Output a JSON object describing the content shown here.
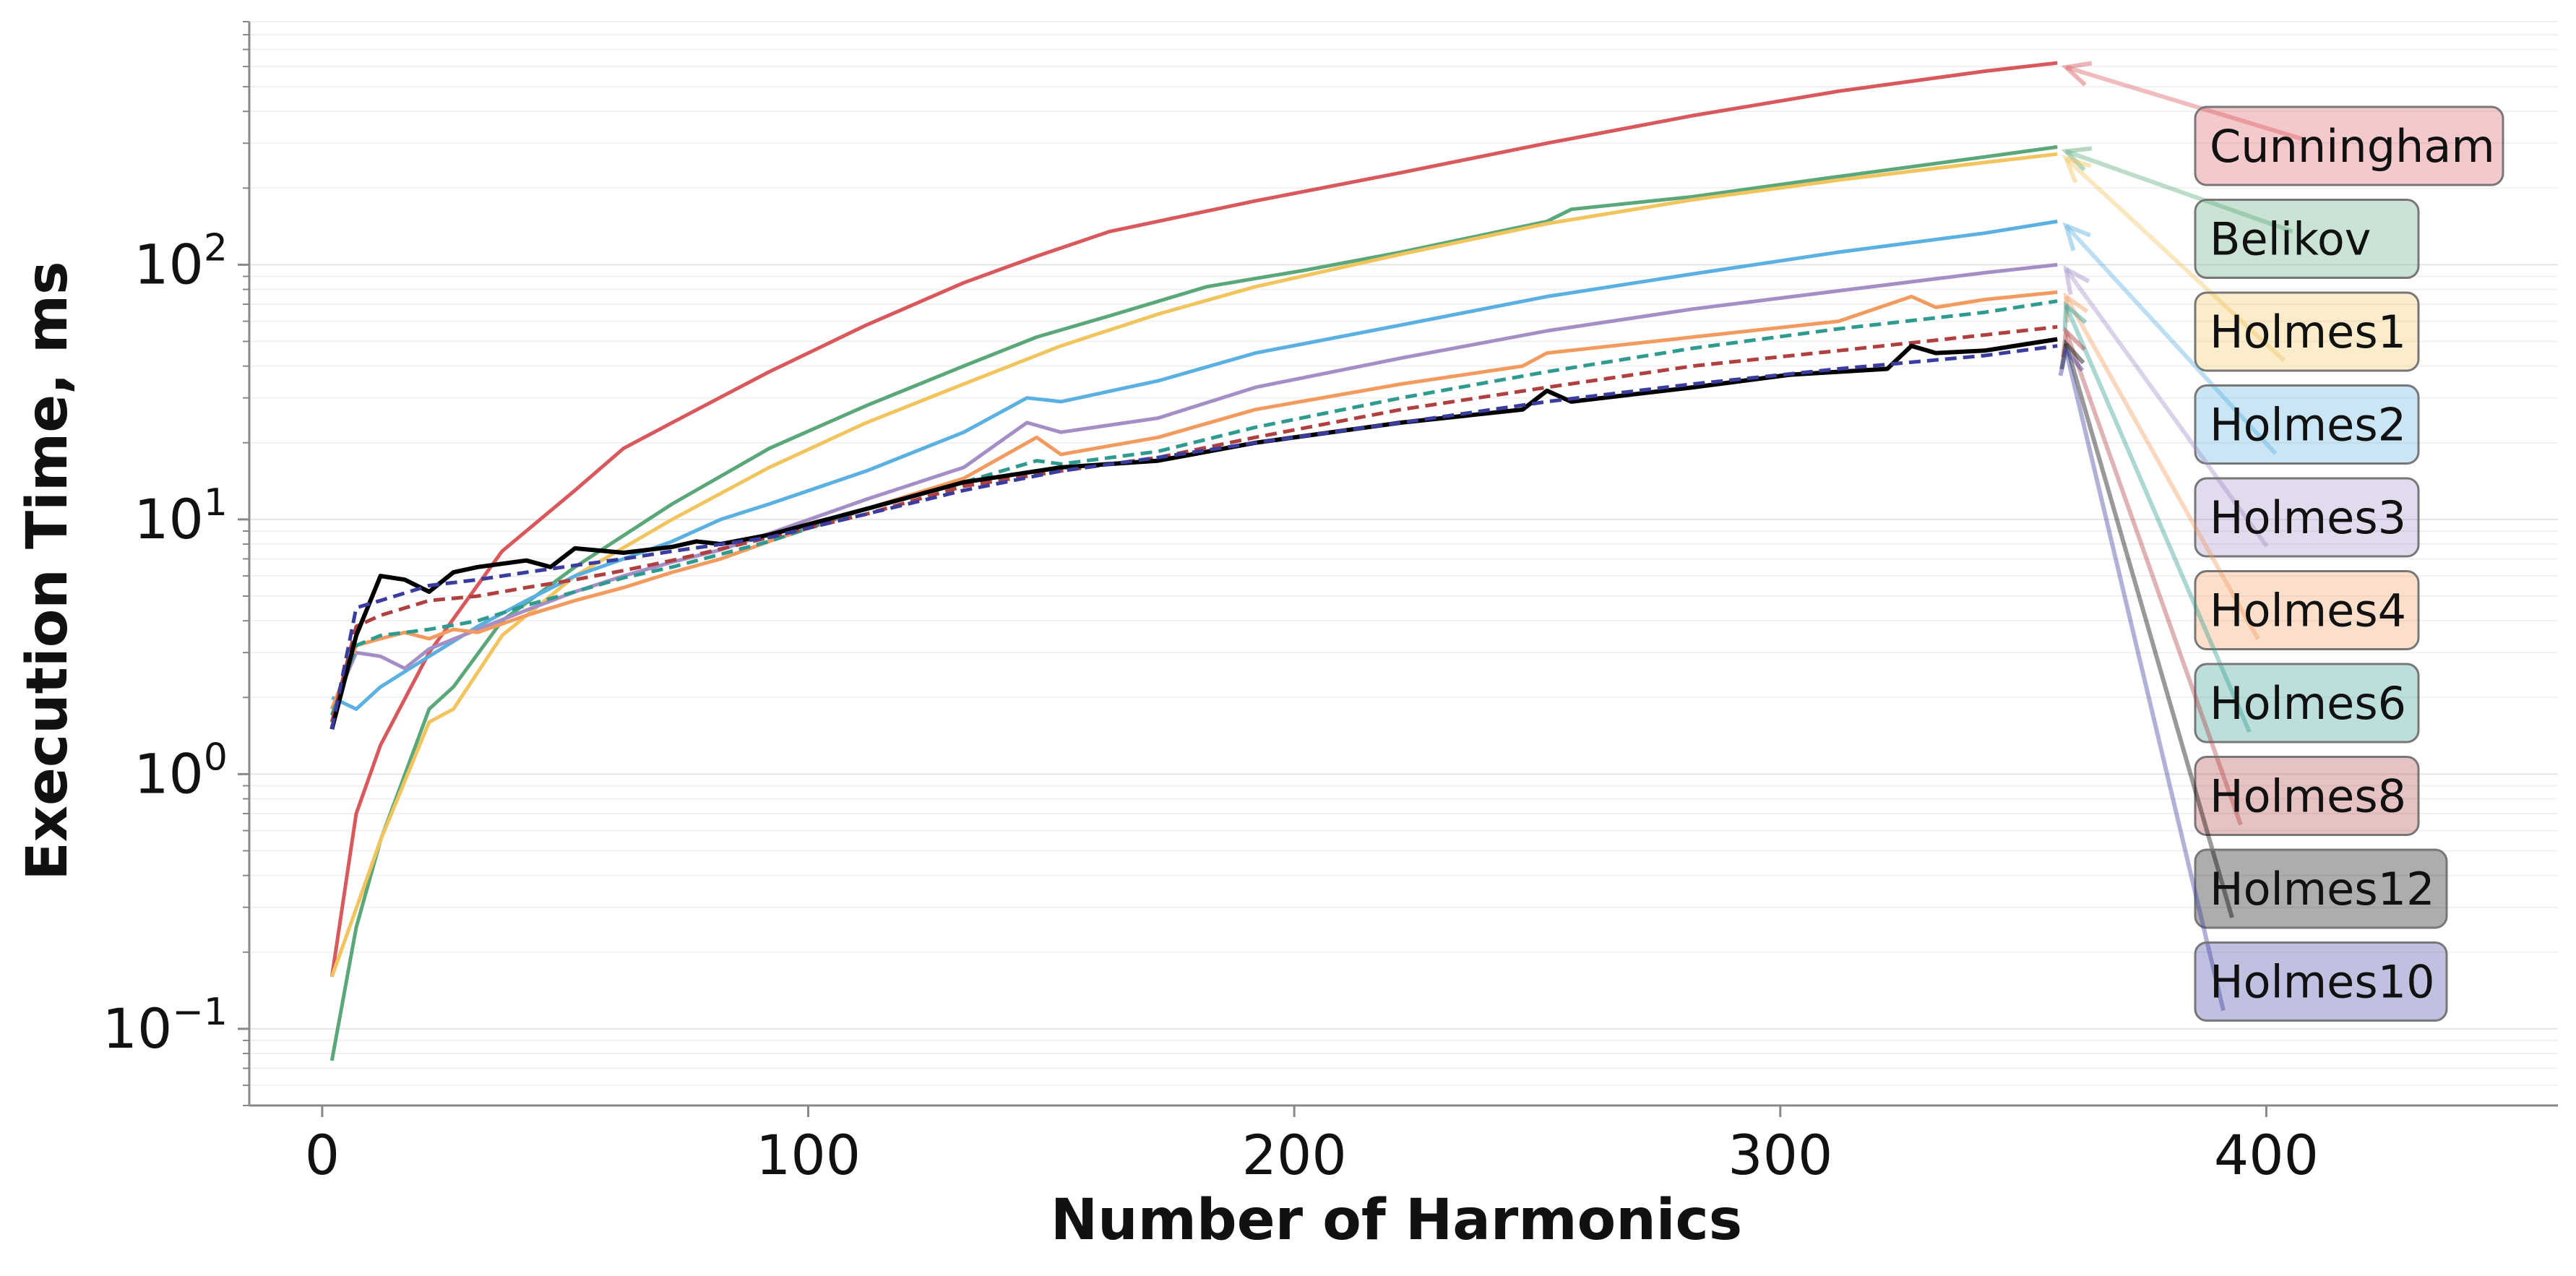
{
  "chart_data": {
    "type": "line",
    "title": "",
    "xlabel": "Number of Harmonics",
    "ylabel": "Execution Time, ms",
    "yscale": "log",
    "xlim": [
      -15,
      460
    ],
    "ylim": [
      0.05,
      900
    ],
    "xticks": [
      0,
      100,
      200,
      300,
      400
    ],
    "xtick_labels": [
      "0",
      "100",
      "200",
      "300",
      "400"
    ],
    "yticks": [
      0.1,
      1,
      10,
      100
    ],
    "ytick_labels": [
      {
        "base": "10",
        "exp": "−1"
      },
      {
        "base": "10",
        "exp": "0"
      },
      {
        "base": "10",
        "exp": "1"
      },
      {
        "base": "10",
        "exp": "2"
      }
    ],
    "grid": "horizontal, faint",
    "legend": "right, labels pointing to line ends",
    "series": [
      {
        "name": "Cunningham",
        "color": "#d9585c",
        "dash": "solid",
        "x": [
          2,
          7,
          12,
          22,
          37,
          52,
          62,
          72,
          92,
          112,
          132,
          147,
          162,
          192,
          222,
          252,
          282,
          312,
          342,
          357
        ],
        "y": [
          0.16,
          0.7,
          1.3,
          3.0,
          7.5,
          13,
          19,
          24,
          38,
          58,
          85,
          108,
          135,
          178,
          230,
          300,
          385,
          480,
          575,
          620
        ]
      },
      {
        "name": "Belikov",
        "color": "#5aa87a",
        "dash": "solid",
        "x": [
          2,
          7,
          12,
          22,
          27,
          37,
          52,
          72,
          92,
          112,
          132,
          147,
          162,
          182,
          202,
          222,
          252,
          257,
          282,
          312,
          342,
          357
        ],
        "y": [
          0.075,
          0.25,
          0.55,
          1.8,
          2.2,
          4.0,
          6.5,
          11.5,
          19,
          28,
          40,
          52,
          63,
          82,
          95,
          112,
          148,
          165,
          185,
          222,
          265,
          290
        ]
      },
      {
        "name": "Holmes1",
        "color": "#f2c45e",
        "dash": "solid",
        "x": [
          2,
          12,
          22,
          27,
          37,
          52,
          72,
          92,
          112,
          132,
          152,
          172,
          192,
          222,
          252,
          282,
          312,
          342,
          357
        ],
        "y": [
          0.16,
          0.55,
          1.6,
          1.8,
          3.5,
          6.0,
          10,
          16,
          24,
          34,
          48,
          64,
          82,
          110,
          145,
          180,
          215,
          252,
          272
        ]
      },
      {
        "name": "Holmes2",
        "color": "#5ab0e0",
        "dash": "solid",
        "x": [
          2,
          7,
          12,
          22,
          32,
          42,
          52,
          62,
          72,
          82,
          92,
          112,
          132,
          145,
          152,
          172,
          192,
          222,
          252,
          282,
          312,
          342,
          357
        ],
        "y": [
          2.0,
          1.8,
          2.2,
          2.9,
          3.8,
          4.8,
          6.0,
          7.0,
          8.2,
          10,
          11.5,
          15.5,
          22,
          30,
          29,
          35,
          45,
          58,
          75,
          92,
          112,
          133,
          148
        ]
      },
      {
        "name": "Holmes3",
        "color": "#a58dc6",
        "dash": "solid",
        "x": [
          2,
          7,
          12,
          17,
          22,
          32,
          42,
          52,
          62,
          72,
          82,
          92,
          112,
          132,
          145,
          152,
          172,
          192,
          222,
          252,
          282,
          312,
          342,
          357
        ],
        "y": [
          1.8,
          3.0,
          2.9,
          2.6,
          3.1,
          3.7,
          4.4,
          5.2,
          6.0,
          6.8,
          7.6,
          8.8,
          12,
          16,
          24,
          22,
          25,
          33,
          43,
          55,
          67,
          79,
          93,
          100
        ]
      },
      {
        "name": "Holmes4",
        "color": "#f39b5e",
        "dash": "solid",
        "x": [
          2,
          7,
          12,
          17,
          22,
          27,
          32,
          42,
          52,
          62,
          72,
          82,
          92,
          112,
          132,
          147,
          152,
          172,
          192,
          222,
          247,
          252,
          282,
          312,
          327,
          332,
          342,
          357
        ],
        "y": [
          1.8,
          3.2,
          3.4,
          3.6,
          3.4,
          3.7,
          3.6,
          4.2,
          4.8,
          5.4,
          6.2,
          7.0,
          8.2,
          11,
          14.5,
          21,
          18,
          21,
          27,
          34,
          40,
          45,
          52,
          60,
          75,
          68,
          73,
          78
        ]
      },
      {
        "name": "Holmes6",
        "color": "#2f9b90",
        "dash": "dashed",
        "x": [
          2,
          7,
          12,
          22,
          32,
          42,
          52,
          62,
          72,
          92,
          112,
          132,
          147,
          152,
          172,
          192,
          222,
          252,
          282,
          312,
          342,
          357
        ],
        "y": [
          1.7,
          3.2,
          3.5,
          3.7,
          4.0,
          4.6,
          5.2,
          5.9,
          6.5,
          8.2,
          11,
          14,
          17,
          16.5,
          18.5,
          23,
          30,
          38,
          47,
          56,
          65,
          72
        ]
      },
      {
        "name": "Holmes8",
        "color": "#b04040",
        "dash": "dashed",
        "x": [
          2,
          7,
          12,
          22,
          32,
          42,
          52,
          62,
          72,
          92,
          112,
          132,
          152,
          172,
          192,
          222,
          252,
          282,
          312,
          342,
          357
        ],
        "y": [
          1.6,
          3.8,
          4.2,
          4.8,
          5.0,
          5.4,
          5.8,
          6.3,
          6.9,
          8.5,
          10.5,
          13.5,
          15.5,
          17.5,
          21,
          27,
          33,
          40,
          46,
          53,
          57
        ]
      },
      {
        "name": "Holmes12",
        "color": "#000000",
        "dash": "solid",
        "x": [
          2,
          7,
          12,
          17,
          22,
          27,
          32,
          42,
          47,
          52,
          62,
          72,
          77,
          82,
          92,
          112,
          132,
          152,
          172,
          192,
          222,
          247,
          252,
          257,
          282,
          302,
          322,
          327,
          332,
          342,
          357
        ],
        "y": [
          1.5,
          3.5,
          6.0,
          5.8,
          5.2,
          6.2,
          6.5,
          6.9,
          6.5,
          7.7,
          7.4,
          7.8,
          8.2,
          8.0,
          8.7,
          11,
          14,
          16,
          17,
          20,
          24,
          27,
          32,
          29,
          33,
          37,
          39,
          48,
          45,
          46,
          51
        ]
      },
      {
        "name": "Holmes10",
        "color": "#3b3d9e",
        "dash": "dashed",
        "x": [
          2,
          7,
          12,
          22,
          32,
          42,
          52,
          62,
          72,
          92,
          112,
          132,
          152,
          172,
          192,
          222,
          252,
          282,
          312,
          342,
          357
        ],
        "y": [
          1.5,
          4.5,
          4.8,
          5.5,
          5.8,
          6.2,
          6.6,
          7.0,
          7.5,
          8.5,
          10.5,
          13,
          15.5,
          17.5,
          20,
          24,
          29,
          34,
          39,
          44,
          48
        ]
      }
    ]
  }
}
